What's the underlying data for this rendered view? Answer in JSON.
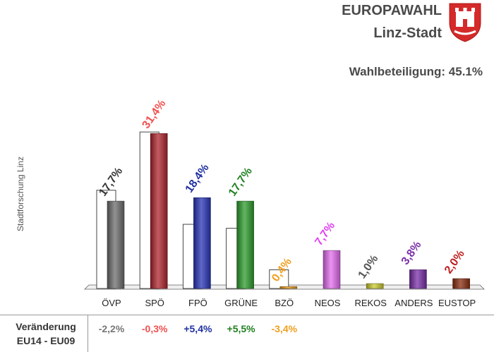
{
  "header": {
    "title": "EUROPAWAHL",
    "subtitle": "Linz-Stadt",
    "turnout": "Wahlbeteiligung: 45.1%"
  },
  "source_label": "Stadtforschung Linz",
  "changes_label_line1": "Veränderung",
  "changes_label_line2": "EU14 - EU09",
  "colors": {
    "crest_red": "#d42a2a"
  },
  "chart_data": {
    "type": "bar",
    "title": "EUROPAWAHL",
    "categories": [
      "ÖVP",
      "SPÖ",
      "FPÖ",
      "GRÜNE",
      "BZÖ",
      "NEOS",
      "REKOS",
      "ANDERS",
      "EUSTOP"
    ],
    "series": [
      {
        "values": [
          17.7,
          31.4,
          18.4,
          17.7,
          0.4,
          7.7,
          1.0,
          3.8,
          2.0
        ]
      },
      {
        "values": [
          19.9,
          31.7,
          13.0,
          12.2,
          3.8,
          null,
          null,
          null,
          null
        ]
      }
    ],
    "value_labels": [
      "17,7%",
      "31,4%",
      "18,4%",
      "17,7%",
      "0,4%",
      "7,7%",
      "1,0%",
      "3,8%",
      "2,0%"
    ],
    "bar_colors": [
      "#6e6e6e",
      "#b0262e",
      "#2a36b8",
      "#2e9e2e",
      "#f0a020",
      "#e46ef0",
      "#cccc30",
      "#7a2fa8",
      "#8a2e10"
    ],
    "label_colors": [
      "#333333",
      "#f05050",
      "#2030a0",
      "#208020",
      "#f0a020",
      "#e040f0",
      "#555555",
      "#7a2fa8",
      "#c02020"
    ],
    "changes": [
      "-2,2%",
      "-0,3%",
      "+5,4%",
      "+5,5%",
      "-3,4%"
    ],
    "change_colors": [
      "#777777",
      "#f05050",
      "#2030a0",
      "#208020",
      "#f0a020"
    ],
    "ylim": [
      0,
      35
    ],
    "grid": false,
    "legend": "none"
  }
}
